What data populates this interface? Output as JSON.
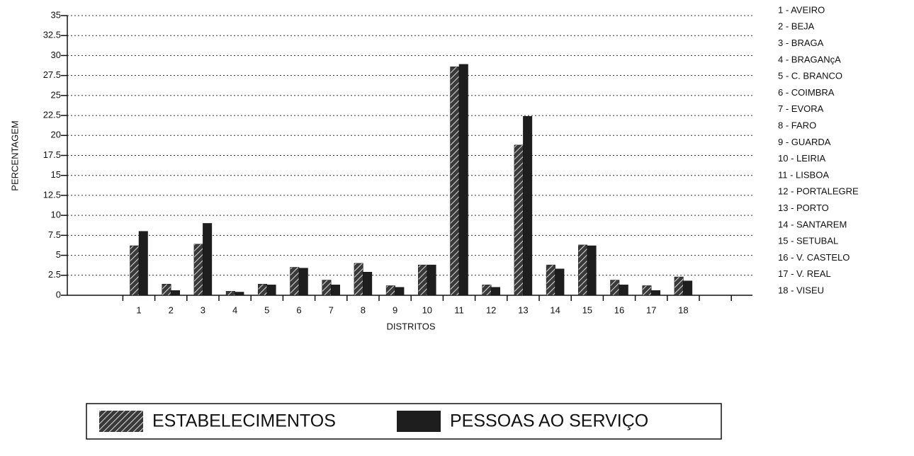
{
  "chart_data": {
    "type": "bar",
    "y_label": "PERCENTAGEM",
    "x_label": "DISTRITOS",
    "categories": [
      "1",
      "2",
      "3",
      "4",
      "5",
      "6",
      "7",
      "8",
      "9",
      "10",
      "11",
      "12",
      "13",
      "14",
      "15",
      "16",
      "17",
      "18"
    ],
    "series": [
      {
        "name": "ESTABELECIMENTOS",
        "color": "#3a3a3a",
        "fill_style": "hatch",
        "values": [
          6.2,
          1.4,
          6.4,
          0.5,
          1.4,
          3.5,
          1.9,
          4.0,
          1.2,
          3.8,
          28.6,
          1.3,
          18.8,
          3.8,
          6.3,
          1.9,
          1.2,
          2.3
        ]
      },
      {
        "name": "PESSOAS AO SERVIÇO",
        "color": "#1e1e1e",
        "fill_style": "solid",
        "values": [
          8.0,
          0.6,
          9.0,
          0.4,
          1.3,
          3.4,
          1.3,
          2.9,
          1.0,
          3.8,
          28.9,
          1.0,
          22.4,
          3.3,
          6.2,
          1.3,
          0.6,
          1.8
        ]
      }
    ],
    "category_key": [
      "1 - AVEIRO",
      "2 - BEJA",
      "3 - BRAGA",
      "4 - BRAGANçA",
      "5 - C. BRANCO",
      "6 - COIMBRA",
      "7 - EVORA",
      "8 - FARO",
      "9 - GUARDA",
      "10 - LEIRIA",
      "11 - LISBOA",
      "12 - PORTALEGRE",
      "13 - PORTO",
      "14 - SANTAREM",
      "15 - SETUBAL",
      "16 - V. CASTELO",
      "17 - V. REAL",
      "18 - VISEU"
    ],
    "ylim": [
      0,
      35
    ],
    "yticks": [
      0,
      2.5,
      5,
      7.5,
      10,
      12.5,
      15,
      17.5,
      20,
      22.5,
      25,
      27.5,
      30,
      32.5,
      35
    ],
    "grid": true,
    "legend": "bottom"
  }
}
